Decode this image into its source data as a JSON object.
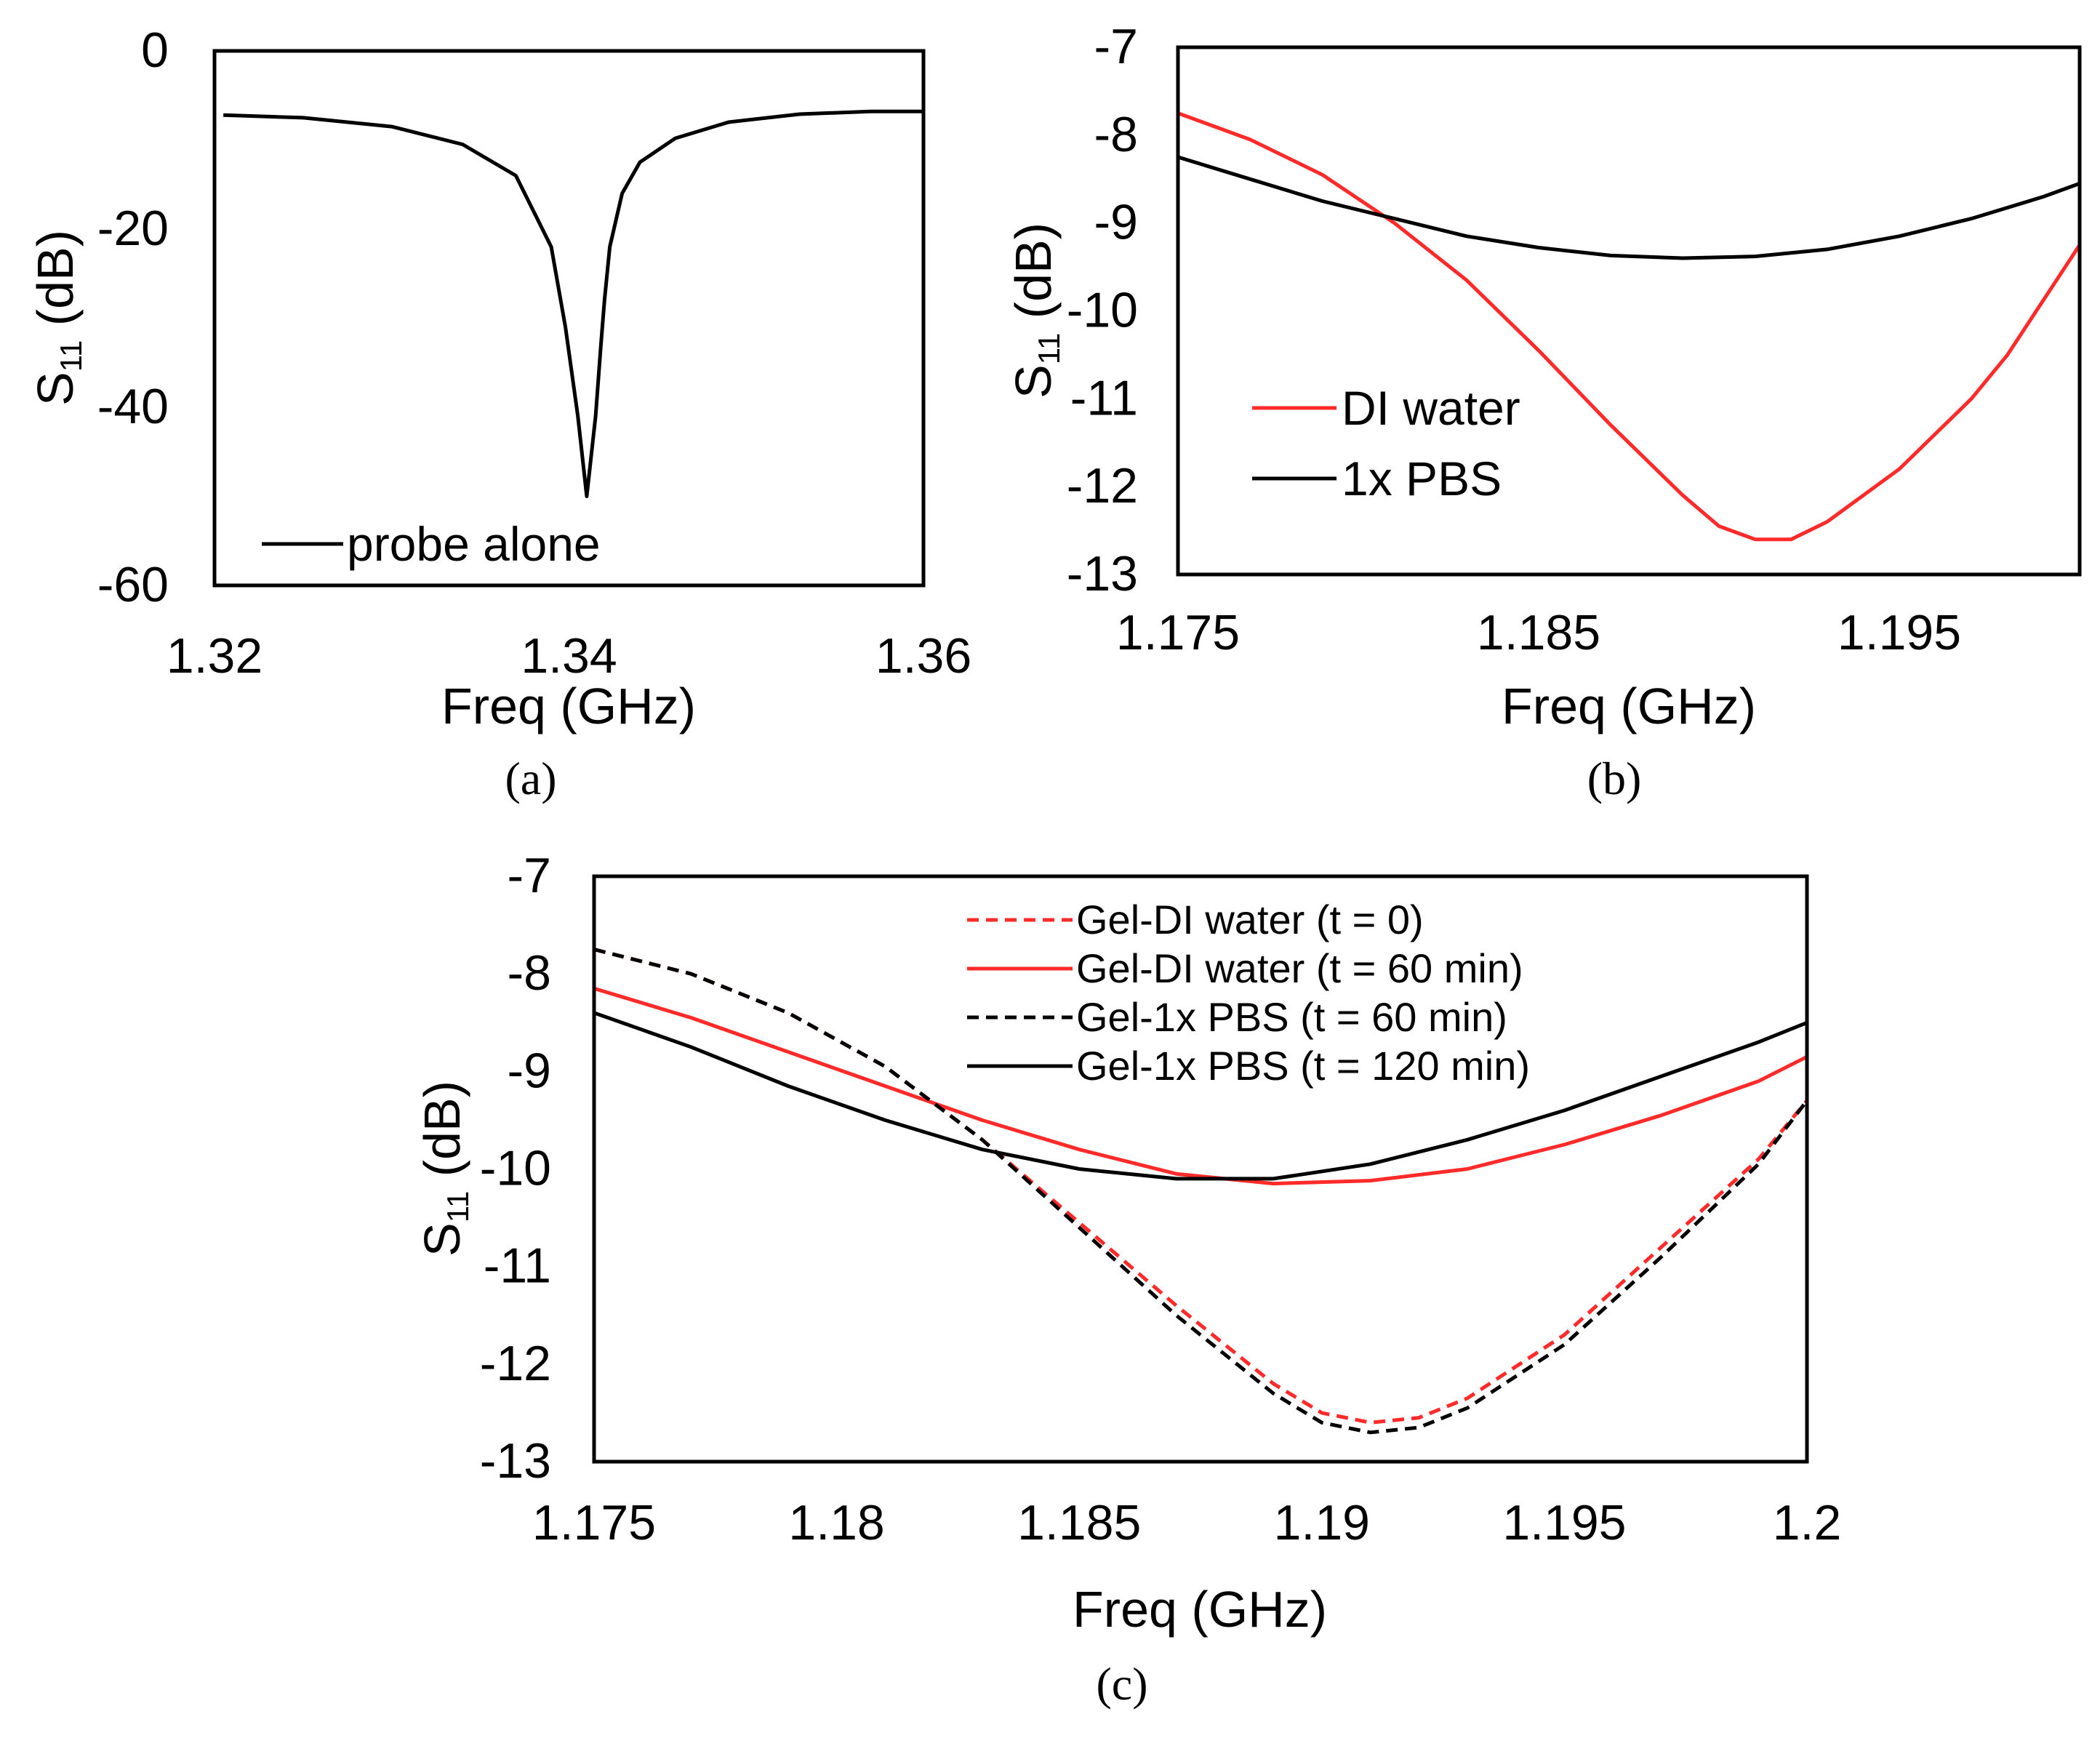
{
  "colors": {
    "black": "#000000",
    "red": "#ff2a2a"
  },
  "chart_data": [
    {
      "id": "a",
      "type": "line",
      "panel_label": "(a)",
      "xlabel": "Freq (GHz)",
      "ylabel_main": "S",
      "ylabel_sub": "11",
      "ylabel_unit": " (dB)",
      "xlim": [
        1.32,
        1.36
      ],
      "ylim": [
        -60,
        0
      ],
      "xticks": [
        1.32,
        1.34,
        1.36
      ],
      "xtick_labels": [
        "1.32",
        "1.34",
        "1.36"
      ],
      "yticks": [
        0,
        -20,
        -40,
        -60
      ],
      "ytick_labels": [
        "0",
        "-20",
        "-40",
        "-60"
      ],
      "legend_position": "bottom-left",
      "series": [
        {
          "name": "probe alone",
          "color": "#000000",
          "dash": "solid",
          "x": [
            1.3205,
            1.325,
            1.33,
            1.334,
            1.337,
            1.339,
            1.3398,
            1.3405,
            1.341,
            1.3415,
            1.3418,
            1.342,
            1.3423,
            1.343,
            1.344,
            1.346,
            1.349,
            1.353,
            1.357,
            1.3604
          ],
          "y": [
            -7.2,
            -7.5,
            -8.5,
            -10.5,
            -14,
            -22,
            -31,
            -41,
            -50,
            -41,
            -33,
            -28,
            -22,
            -16,
            -12.5,
            -9.8,
            -8.0,
            -7.1,
            -6.8,
            -6.8
          ]
        }
      ]
    },
    {
      "id": "b",
      "type": "line",
      "panel_label": "(b)",
      "xlabel": "Freq (GHz)",
      "ylabel_main": "S",
      "ylabel_sub": "11",
      "ylabel_unit": " (dB)",
      "xlim": [
        1.175,
        1.2
      ],
      "ylim": [
        -13,
        -7
      ],
      "xticks": [
        1.175,
        1.185,
        1.195
      ],
      "xtick_labels": [
        "1.175",
        "1.185",
        "1.195"
      ],
      "yticks": [
        -7,
        -8,
        -9,
        -10,
        -11,
        -12,
        -13
      ],
      "ytick_labels": [
        "-7",
        "-8",
        "-9",
        "-10",
        "-11",
        "-12",
        "-13"
      ],
      "legend_position": "bottom-left",
      "series": [
        {
          "name": "DI water",
          "color": "#ff2a2a",
          "dash": "solid",
          "x": [
            1.175,
            1.177,
            1.179,
            1.181,
            1.183,
            1.185,
            1.187,
            1.189,
            1.19,
            1.191,
            1.192,
            1.193,
            1.195,
            1.197,
            1.198,
            1.2
          ],
          "y": [
            -7.75,
            -8.05,
            -8.45,
            -9.0,
            -9.65,
            -10.45,
            -11.3,
            -12.1,
            -12.45,
            -12.6,
            -12.6,
            -12.4,
            -11.8,
            -11.0,
            -10.5,
            -9.25
          ]
        },
        {
          "name": "1x PBS",
          "color": "#000000",
          "dash": "solid",
          "x": [
            1.175,
            1.177,
            1.179,
            1.181,
            1.183,
            1.185,
            1.187,
            1.189,
            1.191,
            1.193,
            1.195,
            1.197,
            1.199,
            1.2
          ],
          "y": [
            -8.25,
            -8.5,
            -8.75,
            -8.95,
            -9.15,
            -9.28,
            -9.37,
            -9.4,
            -9.38,
            -9.3,
            -9.15,
            -8.95,
            -8.7,
            -8.55
          ]
        }
      ]
    },
    {
      "id": "c",
      "type": "line",
      "panel_label": "(c)",
      "xlabel": "Freq (GHz)",
      "ylabel_main": "S",
      "ylabel_sub": "11",
      "ylabel_unit": " (dB)",
      "xlim": [
        1.175,
        1.2
      ],
      "ylim": [
        -13,
        -7
      ],
      "xticks": [
        1.175,
        1.18,
        1.185,
        1.19,
        1.195,
        1.2
      ],
      "xtick_labels": [
        "1.175",
        "1.18",
        "1.185",
        "1.19",
        "1.195",
        "1.2"
      ],
      "yticks": [
        -7,
        -8,
        -9,
        -10,
        -11,
        -12,
        -13
      ],
      "ytick_labels": [
        "-7",
        "-8",
        "-9",
        "-10",
        "-11",
        "-12",
        "-13"
      ],
      "legend_position": "top-right",
      "series": [
        {
          "name": "Gel-DI water (t = 0)",
          "color": "#ff2a2a",
          "dash": "dashed",
          "x": [
            1.175,
            1.177,
            1.179,
            1.181,
            1.183,
            1.185,
            1.187,
            1.189,
            1.19,
            1.191,
            1.192,
            1.193,
            1.195,
            1.197,
            1.199,
            1.2
          ],
          "y": [
            -7.75,
            -8.0,
            -8.4,
            -8.95,
            -9.7,
            -10.55,
            -11.4,
            -12.2,
            -12.5,
            -12.6,
            -12.55,
            -12.35,
            -11.7,
            -10.8,
            -9.9,
            -9.3
          ]
        },
        {
          "name": "Gel-DI water (t =  60 min)",
          "color": "#ff2a2a",
          "dash": "solid",
          "x": [
            1.175,
            1.177,
            1.179,
            1.181,
            1.183,
            1.185,
            1.187,
            1.189,
            1.191,
            1.193,
            1.195,
            1.197,
            1.199,
            1.2
          ],
          "y": [
            -8.15,
            -8.45,
            -8.8,
            -9.15,
            -9.5,
            -9.8,
            -10.05,
            -10.15,
            -10.12,
            -10.0,
            -9.75,
            -9.45,
            -9.1,
            -8.85
          ]
        },
        {
          "name": "Gel-1x PBS (t = 60 min)",
          "color": "#000000",
          "dash": "dashed",
          "x": [
            1.175,
            1.177,
            1.179,
            1.181,
            1.183,
            1.185,
            1.187,
            1.189,
            1.19,
            1.191,
            1.192,
            1.193,
            1.195,
            1.197,
            1.199,
            1.2
          ],
          "y": [
            -7.75,
            -8.0,
            -8.4,
            -8.95,
            -9.7,
            -10.6,
            -11.5,
            -12.3,
            -12.6,
            -12.7,
            -12.65,
            -12.45,
            -11.8,
            -10.9,
            -9.95,
            -9.3
          ]
        },
        {
          "name": "Gel-1x PBS (t = 120 min)",
          "color": "#000000",
          "dash": "solid",
          "x": [
            1.175,
            1.177,
            1.179,
            1.181,
            1.183,
            1.185,
            1.187,
            1.189,
            1.191,
            1.193,
            1.195,
            1.197,
            1.199,
            1.2
          ],
          "y": [
            -8.4,
            -8.75,
            -9.15,
            -9.5,
            -9.8,
            -10.0,
            -10.1,
            -10.1,
            -9.95,
            -9.7,
            -9.4,
            -9.05,
            -8.7,
            -8.5
          ]
        }
      ]
    }
  ]
}
